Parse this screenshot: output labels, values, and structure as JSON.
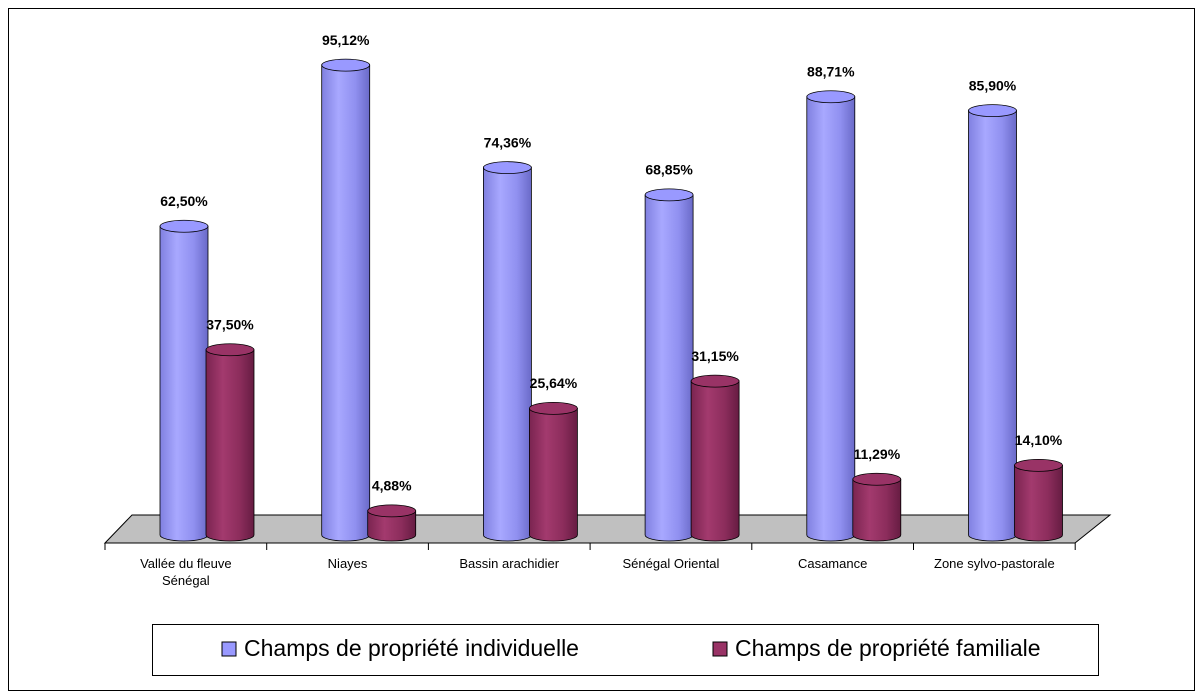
{
  "chart_data": {
    "type": "bar3d",
    "categories": [
      "Vallée du fleuve Sénégal",
      "Niayes",
      "Bassin arachidier",
      "Sénégal Oriental",
      "Casamance",
      "Zone sylvo-pastorale"
    ],
    "series": [
      {
        "name": "Champs de propriété individuelle",
        "color": "#9999ff",
        "values": [
          62.5,
          95.12,
          74.36,
          68.85,
          88.71,
          85.9
        ],
        "value_labels": [
          "62,50%",
          "95,12%",
          "74,36%",
          "68,85%",
          "88,71%",
          "85,90%"
        ]
      },
      {
        "name": "Champs de propriété familiale",
        "color": "#993366",
        "values": [
          37.5,
          4.88,
          25.64,
          31.15,
          11.29,
          14.1
        ],
        "value_labels": [
          "37,50%",
          "4,88%",
          "25,64%",
          "31,15%",
          "11,29%",
          "14,10%"
        ]
      }
    ]
  }
}
